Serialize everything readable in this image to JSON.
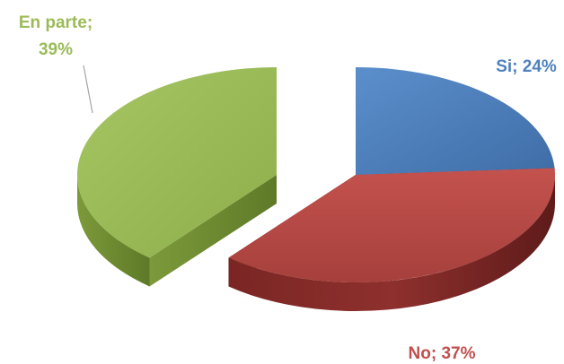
{
  "chart_data": {
    "type": "pie",
    "style": "3d-exploded",
    "slices": [
      {
        "name": "Si",
        "value": 24,
        "color": "#4F81BD",
        "label": "Si; 24%"
      },
      {
        "name": "No",
        "value": 37,
        "color": "#C0504D",
        "label": "No; 37%"
      },
      {
        "name": "En parte",
        "value": 39,
        "color": "#9BBB59",
        "label_line1": "En parte;",
        "label_line2": "39%"
      }
    ]
  }
}
